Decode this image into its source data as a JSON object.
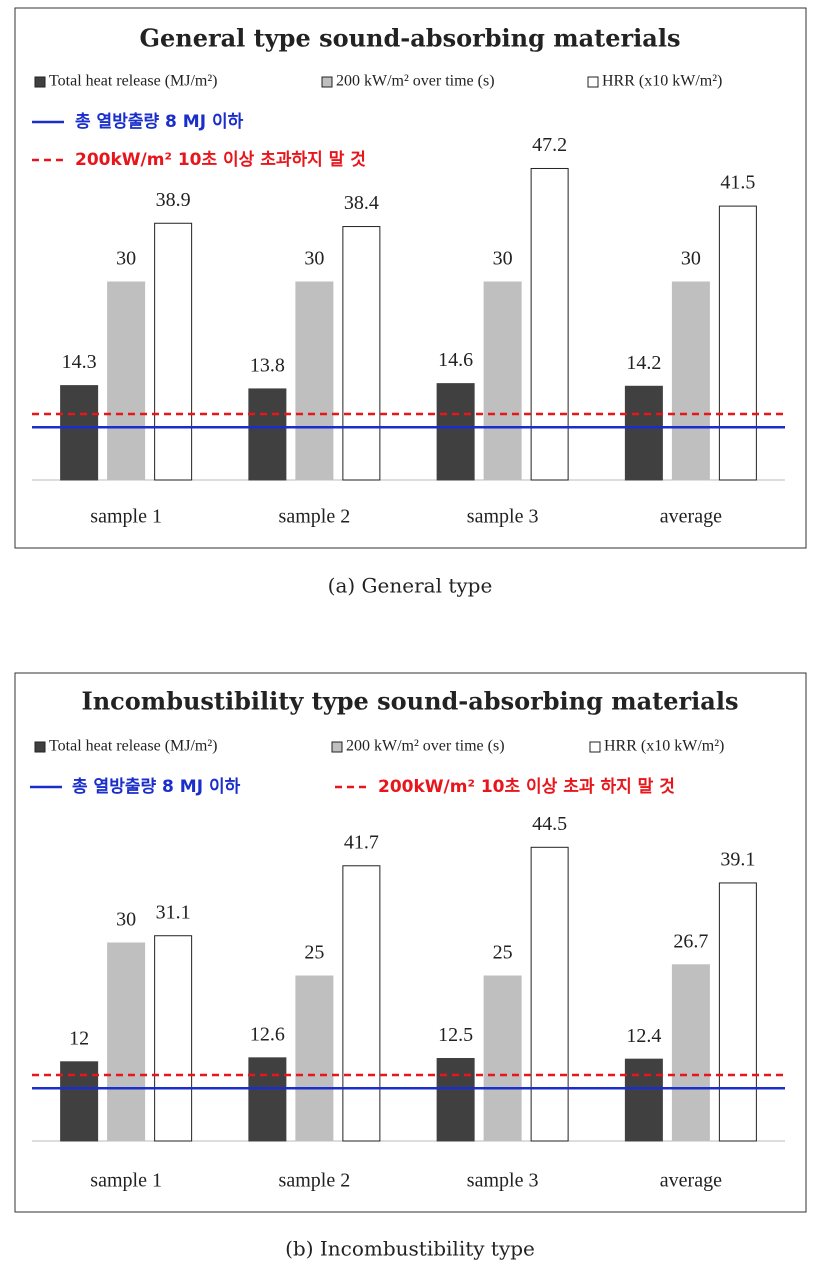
{
  "chart_data": [
    {
      "type": "bar",
      "title": "General type sound-absorbing materials",
      "categories": [
        "sample 1",
        "sample 2",
        "sample 3",
        "average"
      ],
      "series": [
        {
          "name": "Total heat release (MJ/m²)",
          "color": "#404040",
          "values": [
            14.3,
            13.8,
            14.6,
            14.2
          ]
        },
        {
          "name": "200 kW/m² over time (s)",
          "color": "#bfbfbf",
          "values": [
            30,
            30,
            30,
            30
          ]
        },
        {
          "name": "HRR (x10 kW/m²)",
          "color": "#ffffff",
          "values": [
            38.9,
            38.4,
            47.2,
            41.5
          ]
        }
      ],
      "reference_lines": [
        {
          "label": "총 열방출량 8 MJ 이하",
          "value": 8,
          "color": "#1a2ecc",
          "style": "solid"
        },
        {
          "label": "200kW/m² 10초 이상 초과하지 말 것",
          "value": 10,
          "color": "#e8151b",
          "style": "dashed"
        }
      ],
      "ylim": [
        0,
        50
      ],
      "caption": "(a) General type"
    },
    {
      "type": "bar",
      "title": "Incombustibility type sound-absorbing materials",
      "categories": [
        "sample 1",
        "sample 2",
        "sample 3",
        "average"
      ],
      "series": [
        {
          "name": "Total heat release (MJ/m²)",
          "color": "#404040",
          "values": [
            12,
            12.6,
            12.5,
            12.4
          ]
        },
        {
          "name": "200 kW/m² over time (s)",
          "color": "#bfbfbf",
          "values": [
            30,
            25,
            25,
            26.7
          ]
        },
        {
          "name": "HRR (x10 kW/m²)",
          "color": "#ffffff",
          "values": [
            31.1,
            41.7,
            44.5,
            39.1
          ]
        }
      ],
      "reference_lines": [
        {
          "label": "총 열방출량 8 MJ 이하",
          "value": 8,
          "color": "#1a2ecc",
          "style": "solid"
        },
        {
          "label": "200kW/m² 10초 이상 초과 하지 말 것",
          "value": 10,
          "color": "#e8151b",
          "style": "dashed"
        }
      ],
      "ylim": [
        0,
        50
      ],
      "caption": "(b) Incombustibility type"
    }
  ]
}
